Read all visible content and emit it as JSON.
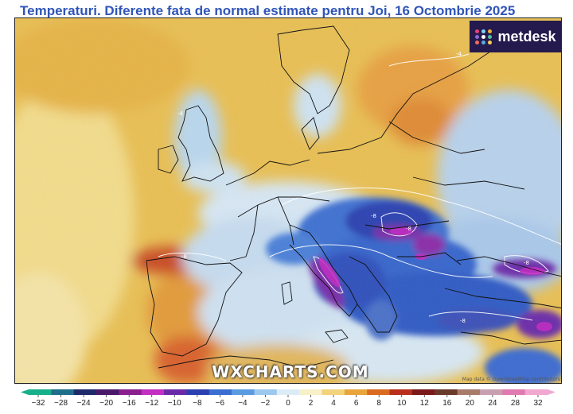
{
  "title": "Temperaturi. Diferente fata de normal estimate pentru Joi, 16 Octombrie 2025",
  "logo": {
    "text": "metdesk",
    "dot_colors": [
      "#e8417a",
      "#7ed3f2",
      "#f2b134",
      "#8c6bd6",
      "#ffffff",
      "#4fc3a1",
      "#f26b5b",
      "#5aa9e6",
      "#f7d154"
    ]
  },
  "watermark": "WXCHARTS.COM",
  "credit": "Map data © OpenStreetMap contributors",
  "contour_labels": {
    "iberia": "-8",
    "balkans": "-8",
    "carpathians": "-8",
    "turkey": "-8",
    "anatolia": "-8",
    "baltic": "-4",
    "scandinavia": "-4"
  },
  "colorbar": {
    "ticks": [
      "−32",
      "−28",
      "−24",
      "−20",
      "−16",
      "−12",
      "−10",
      "−8",
      "−6",
      "−4",
      "−2",
      "0",
      "2",
      "4",
      "6",
      "8",
      "10",
      "12",
      "16",
      "20",
      "24",
      "28",
      "32"
    ],
    "colors": [
      "#18b08a",
      "#1f6f8a",
      "#1e2a6a",
      "#4a1a6a",
      "#8a1f8f",
      "#c22fc2",
      "#6a2aa8",
      "#2a3fb0",
      "#3b6ed1",
      "#5a9ae0",
      "#9cc8ee",
      "#dcecf7",
      "#f7f0c8",
      "#f2d27a",
      "#e9a43c",
      "#d96a1f",
      "#b8301c",
      "#7a1a1a",
      "#6a3a2a",
      "#a87a6a",
      "#c8a0b0",
      "#e07ab0",
      "#f0a8d0"
    ]
  }
}
